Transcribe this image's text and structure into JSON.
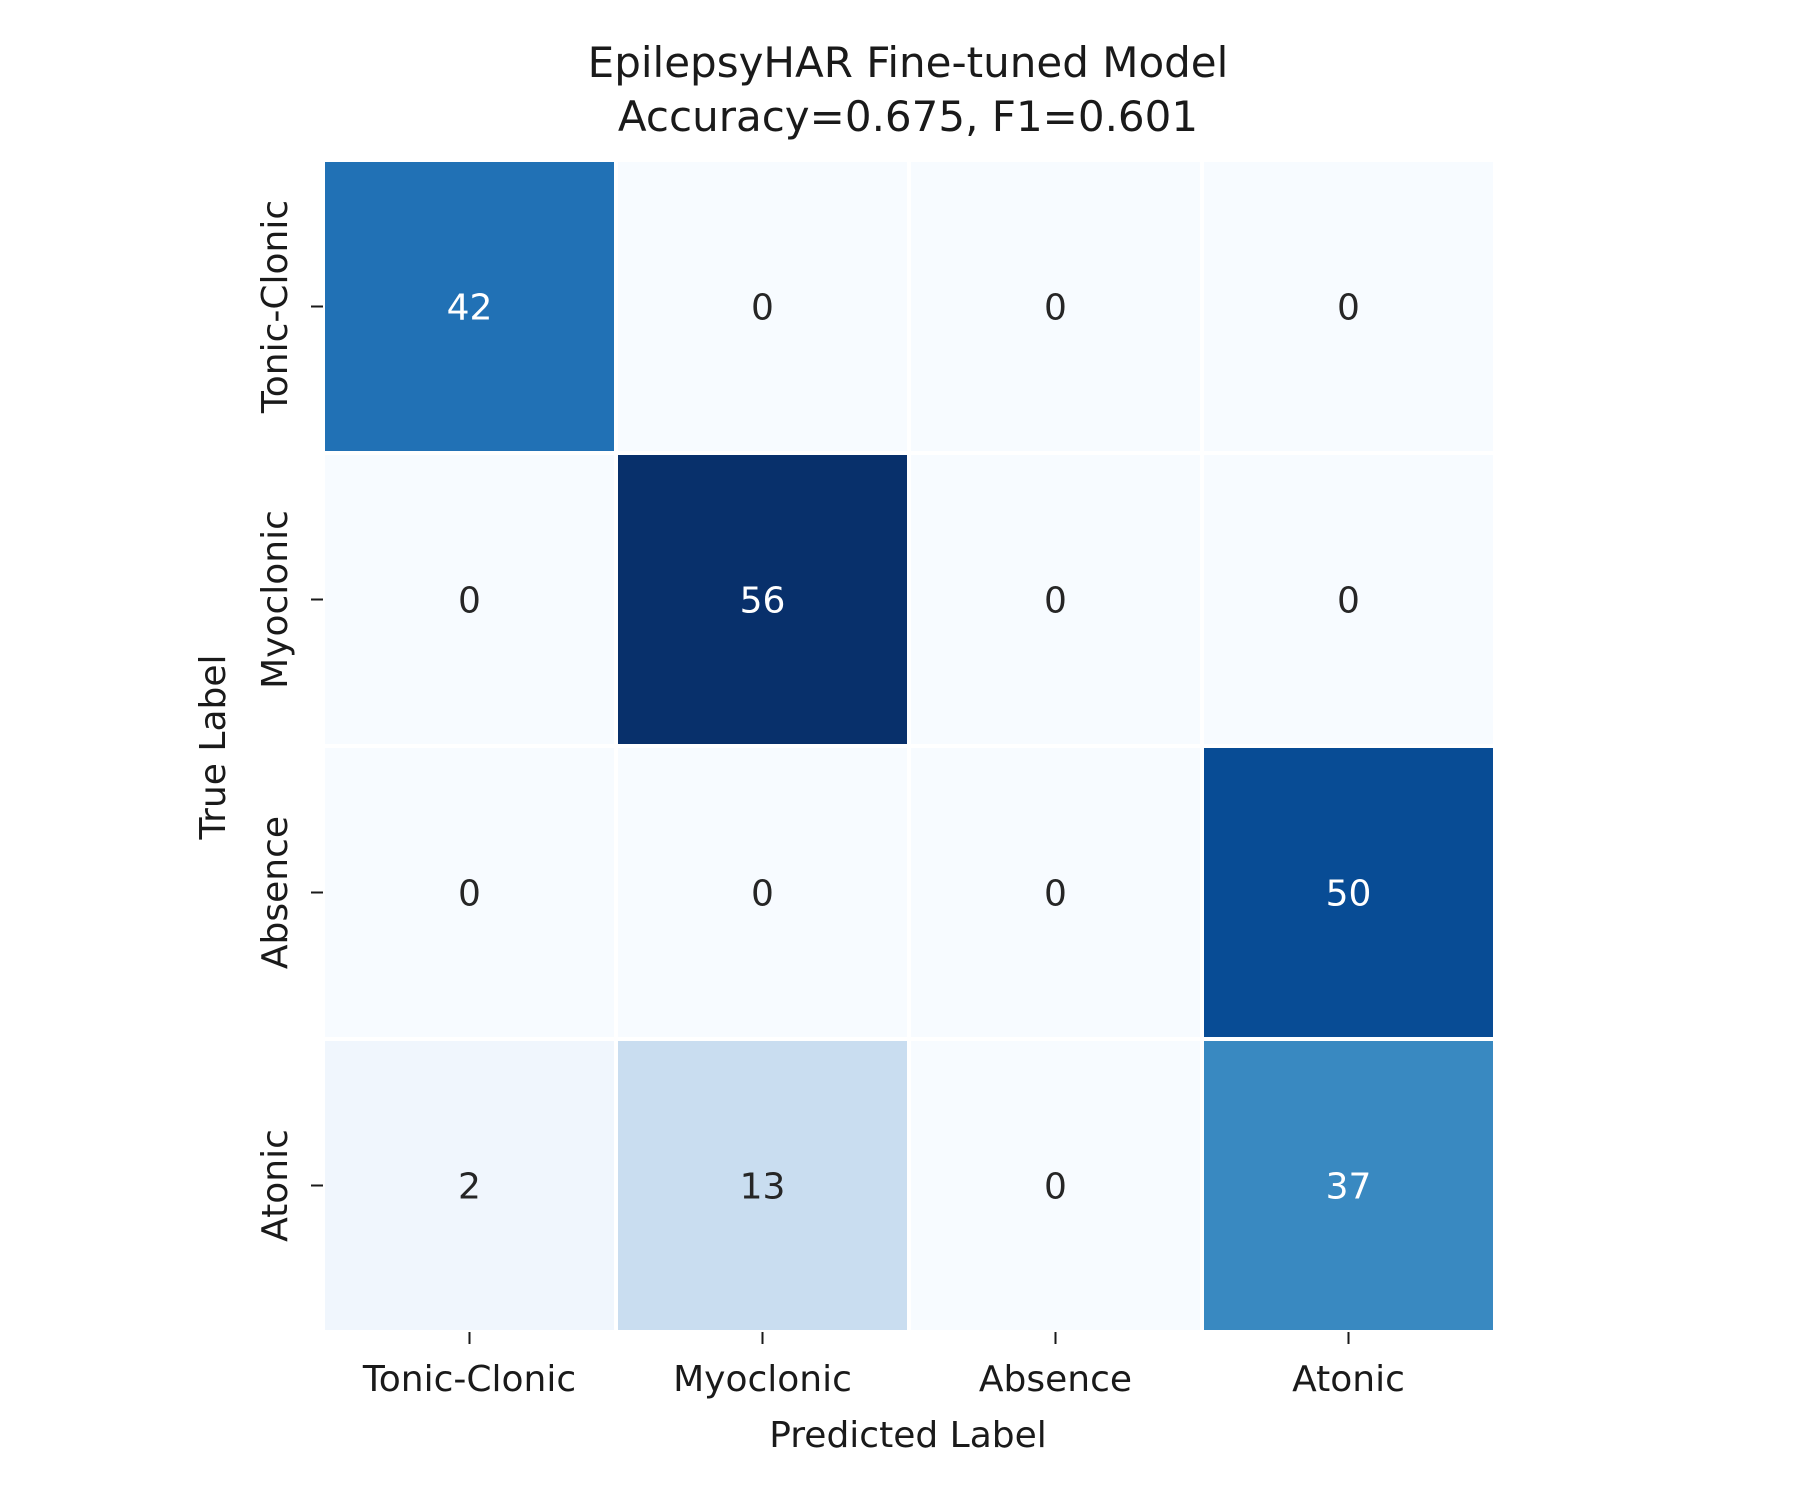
{
  "chart_data": {
    "type": "heatmap",
    "title": "EpilepsyHAR Fine-tuned Model",
    "subtitle": "Accuracy=0.675, F1=0.601",
    "xlabel": "Predicted Label",
    "ylabel": "True Label",
    "x_categories": [
      "Tonic-Clonic",
      "Myoclonic",
      "Absence",
      "Atonic"
    ],
    "y_categories": [
      "Tonic-Clonic",
      "Myoclonic",
      "Absence",
      "Atonic"
    ],
    "values": [
      [
        42,
        0,
        0,
        0
      ],
      [
        0,
        56,
        0,
        0
      ],
      [
        0,
        0,
        0,
        50
      ],
      [
        2,
        13,
        0,
        37
      ]
    ],
    "value_range": [
      0,
      56
    ],
    "colormap": "Blues",
    "colorbar": false,
    "grid": false
  }
}
